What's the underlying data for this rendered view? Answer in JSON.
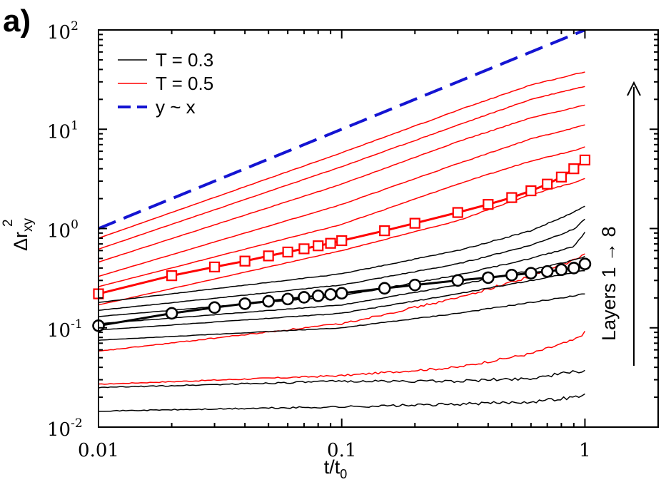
{
  "panel_label": "a)",
  "chart_data": {
    "type": "line",
    "x_scale": "log",
    "y_scale": "log",
    "xlabel": "t/t",
    "xlabel_sub": "0",
    "ylabel_main": "Δr",
    "ylabel_sub": "xy",
    "ylabel_sup": "2",
    "xlim": [
      0.01,
      2.0
    ],
    "ylim": [
      0.01,
      100
    ],
    "x_ticks": [
      {
        "value": 0.01,
        "label": "0.01"
      },
      {
        "value": 0.1,
        "label": "0.1"
      },
      {
        "value": 1,
        "label": "1"
      }
    ],
    "y_ticks": [
      {
        "value": 0.01,
        "base": "10",
        "exp": "-2"
      },
      {
        "value": 0.1,
        "base": "10",
        "exp": "-1"
      },
      {
        "value": 1,
        "base": "10",
        "exp": "0"
      },
      {
        "value": 10,
        "base": "10",
        "exp": "1"
      },
      {
        "value": 100,
        "base": "10",
        "exp": "2"
      }
    ],
    "legend": {
      "placement": "top-left",
      "entries": [
        {
          "label": "T = 0.3",
          "color": "#000000",
          "style": "solid"
        },
        {
          "label": "T = 0.5",
          "color": "#ff0000",
          "style": "solid"
        },
        {
          "label": "y ~ x",
          "color": "#1414d2",
          "style": "dashed"
        }
      ]
    },
    "annotation": {
      "text": "Layers  1 → 8"
    },
    "reference_line": {
      "name": "y ~ x",
      "color": "#1414d2",
      "x": [
        0.01,
        1.0
      ],
      "y": [
        1.0,
        100.0
      ]
    },
    "series_T05": [
      {
        "name": "T=0.5 layer 1",
        "x": [
          0.01,
          0.1,
          0.3,
          0.6,
          0.9,
          1.0
        ],
        "y": [
          0.027,
          0.033,
          0.04,
          0.055,
          0.075,
          0.09
        ]
      },
      {
        "name": "T=0.5 layer 2",
        "x": [
          0.01,
          0.1,
          0.3,
          0.6,
          0.9,
          1.0
        ],
        "y": [
          0.058,
          0.11,
          0.2,
          0.33,
          0.48,
          0.55
        ]
      },
      {
        "name": "T=0.5 layer 3",
        "x": [
          0.01,
          0.1,
          0.3,
          0.6,
          0.9,
          1.0
        ],
        "y": [
          0.17,
          0.6,
          1.2,
          2.2,
          2.9,
          3.2
        ]
      },
      {
        "name": "T=0.5 layer 4",
        "x": [
          0.01,
          0.1,
          0.3,
          0.6,
          0.9,
          1.0
        ],
        "y": [
          0.26,
          1.1,
          2.8,
          4.8,
          6.1,
          6.7
        ]
      },
      {
        "name": "T=0.5 layer 5",
        "x": [
          0.01,
          0.1,
          0.3,
          0.6,
          0.9,
          1.0
        ],
        "y": [
          0.33,
          1.75,
          4.5,
          8.0,
          10.3,
          11.0
        ]
      },
      {
        "name": "T=0.5 layer 6",
        "x": [
          0.01,
          0.1,
          0.3,
          0.6,
          0.9,
          1.0
        ],
        "y": [
          0.46,
          2.8,
          7.5,
          13.0,
          16.5,
          17.5
        ]
      },
      {
        "name": "T=0.5 layer 7",
        "x": [
          0.01,
          0.1,
          0.3,
          0.6,
          0.9,
          1.0
        ],
        "y": [
          0.62,
          4.2,
          11.0,
          20.0,
          25.5,
          27.0
        ]
      },
      {
        "name": "T=0.5 layer 8",
        "x": [
          0.01,
          0.1,
          0.3,
          0.6,
          0.9,
          1.0
        ],
        "y": [
          0.8,
          5.8,
          15.5,
          28.0,
          35.5,
          38.0
        ]
      }
    ],
    "series_T03": [
      {
        "name": "T=0.3 layer 1",
        "x": [
          0.01,
          0.1,
          0.3,
          0.6,
          0.9,
          1.0
        ],
        "y": [
          0.0145,
          0.016,
          0.017,
          0.018,
          0.02,
          0.021
        ]
      },
      {
        "name": "T=0.3 layer 2",
        "x": [
          0.01,
          0.1,
          0.3,
          0.6,
          0.9,
          1.0
        ],
        "y": [
          0.025,
          0.029,
          0.029,
          0.031,
          0.036,
          0.037
        ]
      },
      {
        "name": "T=0.3 layer 3",
        "x": [
          0.01,
          0.1,
          0.3,
          0.6,
          0.9,
          1.0
        ],
        "y": [
          0.075,
          0.1,
          0.14,
          0.18,
          0.21,
          0.22
        ]
      },
      {
        "name": "T=0.3 layer 4",
        "x": [
          0.01,
          0.1,
          0.3,
          0.6,
          0.9,
          1.0
        ],
        "y": [
          0.095,
          0.14,
          0.22,
          0.3,
          0.36,
          0.38
        ]
      },
      {
        "name": "T=0.3 layer 5",
        "x": [
          0.01,
          0.1,
          0.3,
          0.6,
          0.9,
          1.0
        ],
        "y": [
          0.11,
          0.17,
          0.27,
          0.38,
          0.48,
          0.52
        ]
      },
      {
        "name": "T=0.3 layer 6",
        "x": [
          0.01,
          0.1,
          0.3,
          0.6,
          0.9,
          1.0
        ],
        "y": [
          0.13,
          0.21,
          0.34,
          0.5,
          0.66,
          0.92
        ]
      },
      {
        "name": "T=0.3 layer 7",
        "x": [
          0.01,
          0.1,
          0.3,
          0.6,
          0.9,
          1.0
        ],
        "y": [
          0.15,
          0.27,
          0.44,
          0.68,
          0.98,
          1.25
        ]
      },
      {
        "name": "T=0.3 layer 8",
        "x": [
          0.01,
          0.1,
          0.3,
          0.6,
          0.9,
          1.0
        ],
        "y": [
          0.18,
          0.35,
          0.6,
          0.95,
          1.45,
          1.7
        ]
      }
    ],
    "marker_series": [
      {
        "name": "T = 0.5 (squares)",
        "color": "#ff0000",
        "marker": "square",
        "x": [
          0.01,
          0.02,
          0.03,
          0.04,
          0.05,
          0.06,
          0.07,
          0.08,
          0.09,
          0.1,
          0.15,
          0.2,
          0.3,
          0.4,
          0.5,
          0.6,
          0.7,
          0.8,
          0.9,
          1.0
        ],
        "y": [
          0.22,
          0.335,
          0.41,
          0.47,
          0.53,
          0.58,
          0.625,
          0.67,
          0.71,
          0.755,
          0.95,
          1.13,
          1.45,
          1.75,
          2.05,
          2.4,
          2.8,
          3.3,
          4.0,
          4.9
        ]
      },
      {
        "name": "T = 0.3 (circles)",
        "color": "#000000",
        "marker": "circle",
        "x": [
          0.01,
          0.02,
          0.03,
          0.04,
          0.05,
          0.06,
          0.07,
          0.08,
          0.09,
          0.1,
          0.15,
          0.2,
          0.3,
          0.4,
          0.5,
          0.6,
          0.7,
          0.8,
          0.9,
          1.0
        ],
        "y": [
          0.105,
          0.14,
          0.16,
          0.175,
          0.185,
          0.195,
          0.203,
          0.21,
          0.217,
          0.223,
          0.25,
          0.27,
          0.3,
          0.32,
          0.34,
          0.355,
          0.37,
          0.385,
          0.4,
          0.44
        ]
      }
    ]
  }
}
